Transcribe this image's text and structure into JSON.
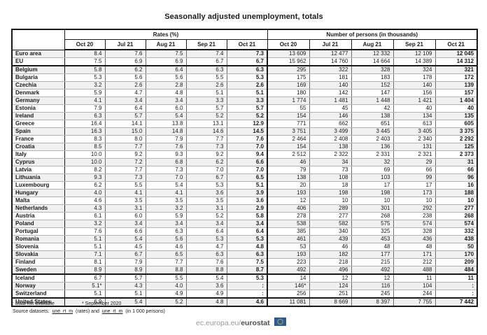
{
  "title": "Seasonally adjusted unemployment, totals",
  "table": {
    "groups": [
      {
        "label": "Rates (%)"
      },
      {
        "label": "Number of persons (in thousands)"
      }
    ],
    "months": [
      "Oct 20",
      "Jul 21",
      "Aug 21",
      "Sep 21",
      "Oct 21"
    ],
    "rows": [
      {
        "name": "Euro area",
        "rates": [
          "8.4",
          "7.6",
          "7.5",
          "7.4",
          "7.3"
        ],
        "persons": [
          "13 609",
          "12 477",
          "12 332",
          "12 109",
          "12 045"
        ],
        "separator_after": false
      },
      {
        "name": "EU",
        "rates": [
          "7.5",
          "6.9",
          "6.9",
          "6.7",
          "6.7"
        ],
        "persons": [
          "15 962",
          "14 760",
          "14 664",
          "14 389",
          "14 312"
        ],
        "separator_after": true
      },
      {
        "name": "Belgium",
        "rates": [
          "5.8",
          "6.2",
          "6.4",
          "6.3",
          "6.3"
        ],
        "persons": [
          "295",
          "322",
          "328",
          "324",
          "321"
        ],
        "separator_after": false
      },
      {
        "name": "Bulgaria",
        "rates": [
          "5.3",
          "5.6",
          "5.6",
          "5.5",
          "5.3"
        ],
        "persons": [
          "175",
          "181",
          "183",
          "178",
          "172"
        ],
        "separator_after": false
      },
      {
        "name": "Czechia",
        "rates": [
          "3.2",
          "2.6",
          "2.8",
          "2.6",
          "2.6"
        ],
        "persons": [
          "169",
          "140",
          "152",
          "140",
          "139"
        ],
        "separator_after": false
      },
      {
        "name": "Denmark",
        "rates": [
          "5.9",
          "4.7",
          "4.8",
          "5.1",
          "5.1"
        ],
        "persons": [
          "180",
          "142",
          "147",
          "156",
          "157"
        ],
        "separator_after": false
      },
      {
        "name": "Germany",
        "rates": [
          "4.1",
          "3.4",
          "3.4",
          "3.3",
          "3.3"
        ],
        "persons": [
          "1 774",
          "1 481",
          "1 448",
          "1 421",
          "1 404"
        ],
        "separator_after": false
      },
      {
        "name": "Estonia",
        "rates": [
          "7.9",
          "6.4",
          "6.0",
          "5.7",
          "5.7"
        ],
        "persons": [
          "55",
          "45",
          "42",
          "40",
          "40"
        ],
        "separator_after": false
      },
      {
        "name": "Ireland",
        "rates": [
          "6.3",
          "5.7",
          "5.4",
          "5.2",
          "5.2"
        ],
        "persons": [
          "154",
          "146",
          "138",
          "134",
          "135"
        ],
        "separator_after": false
      },
      {
        "name": "Greece",
        "rates": [
          "16.4",
          "14.1",
          "13.8",
          "13.1",
          "12.9"
        ],
        "persons": [
          "771",
          "662",
          "651",
          "613",
          "605"
        ],
        "separator_after": false
      },
      {
        "name": "Spain",
        "rates": [
          "16.3",
          "15.0",
          "14.8",
          "14.6",
          "14.5"
        ],
        "persons": [
          "3 751",
          "3 499",
          "3 445",
          "3 405",
          "3 375"
        ],
        "separator_after": false
      },
      {
        "name": "France",
        "rates": [
          "8.3",
          "8.0",
          "7.9",
          "7.7",
          "7.6"
        ],
        "persons": [
          "2 464",
          "2 408",
          "2 403",
          "2 340",
          "2 292"
        ],
        "separator_after": false
      },
      {
        "name": "Croatia",
        "rates": [
          "8.5",
          "7.7",
          "7.6",
          "7.3",
          "7.0"
        ],
        "persons": [
          "154",
          "138",
          "136",
          "131",
          "125"
        ],
        "separator_after": false
      },
      {
        "name": "Italy",
        "rates": [
          "10.0",
          "9.2",
          "9.3",
          "9.2",
          "9.4"
        ],
        "persons": [
          "2 512",
          "2 322",
          "2 331",
          "2 321",
          "2 373"
        ],
        "separator_after": false
      },
      {
        "name": "Cyprus",
        "rates": [
          "10.0",
          "7.2",
          "6.8",
          "6.2",
          "6.6"
        ],
        "persons": [
          "46",
          "34",
          "32",
          "29",
          "31"
        ],
        "separator_after": false
      },
      {
        "name": "Latvia",
        "rates": [
          "8.2",
          "7.7",
          "7.3",
          "7.0",
          "7.0"
        ],
        "persons": [
          "79",
          "73",
          "69",
          "66",
          "66"
        ],
        "separator_after": false
      },
      {
        "name": "Lithuania",
        "rates": [
          "9.3",
          "7.3",
          "7.0",
          "6.7",
          "6.5"
        ],
        "persons": [
          "138",
          "108",
          "103",
          "99",
          "96"
        ],
        "separator_after": false
      },
      {
        "name": "Luxembourg",
        "rates": [
          "6.2",
          "5.5",
          "5.4",
          "5.3",
          "5.1"
        ],
        "persons": [
          "20",
          "18",
          "17",
          "17",
          "16"
        ],
        "separator_after": false
      },
      {
        "name": "Hungary",
        "rates": [
          "4.0",
          "4.1",
          "4.1",
          "3.6",
          "3.9"
        ],
        "persons": [
          "193",
          "198",
          "198",
          "173",
          "188"
        ],
        "separator_after": false
      },
      {
        "name": "Malta",
        "rates": [
          "4.6",
          "3.5",
          "3.5",
          "3.5",
          "3.6"
        ],
        "persons": [
          "12",
          "10",
          "10",
          "10",
          "10"
        ],
        "separator_after": false
      },
      {
        "name": "Netherlands",
        "rates": [
          "4.3",
          "3.1",
          "3.2",
          "3.1",
          "2.9"
        ],
        "persons": [
          "406",
          "289",
          "301",
          "292",
          "277"
        ],
        "separator_after": false
      },
      {
        "name": "Austria",
        "rates": [
          "6.1",
          "6.0",
          "5.9",
          "5.2",
          "5.8"
        ],
        "persons": [
          "278",
          "277",
          "268",
          "238",
          "268"
        ],
        "separator_after": false
      },
      {
        "name": "Poland",
        "rates": [
          "3.2",
          "3.4",
          "3.4",
          "3.4",
          "3.4"
        ],
        "persons": [
          "538",
          "582",
          "575",
          "574",
          "574"
        ],
        "separator_after": false
      },
      {
        "name": "Portugal",
        "rates": [
          "7.6",
          "6.6",
          "6.3",
          "6.4",
          "6.4"
        ],
        "persons": [
          "385",
          "340",
          "325",
          "328",
          "332"
        ],
        "separator_after": false
      },
      {
        "name": "Romania",
        "rates": [
          "5.1",
          "5.4",
          "5.6",
          "5.3",
          "5.3"
        ],
        "persons": [
          "461",
          "439",
          "453",
          "436",
          "438"
        ],
        "separator_after": false
      },
      {
        "name": "Slovenia",
        "rates": [
          "5.1",
          "4.5",
          "4.6",
          "4.7",
          "4.8"
        ],
        "persons": [
          "53",
          "46",
          "48",
          "48",
          "50"
        ],
        "separator_after": false
      },
      {
        "name": "Slovakia",
        "rates": [
          "7.1",
          "6.7",
          "6.5",
          "6.3",
          "6.3"
        ],
        "persons": [
          "193",
          "182",
          "177",
          "171",
          "170"
        ],
        "separator_after": false
      },
      {
        "name": "Finland",
        "rates": [
          "8.1",
          "7.9",
          "7.7",
          "7.6",
          "7.5"
        ],
        "persons": [
          "223",
          "218",
          "215",
          "212",
          "209"
        ],
        "separator_after": false
      },
      {
        "name": "Sweden",
        "rates": [
          "8.9",
          "8.9",
          "8.8",
          "8.8",
          "8.7"
        ],
        "persons": [
          "492",
          "496",
          "492",
          "488",
          "484"
        ],
        "separator_after": true
      },
      {
        "name": "Iceland",
        "rates": [
          "6.7",
          "5.7",
          "5.5",
          "5.4",
          "5.3"
        ],
        "persons": [
          "14",
          "12",
          "12",
          "11",
          "11"
        ],
        "separator_after": false
      },
      {
        "name": "Norway",
        "rates": [
          "5.1*",
          "4.3",
          "4.0",
          "3.6",
          ":"
        ],
        "persons": [
          "146*",
          "124",
          "116",
          "104",
          ":"
        ],
        "separator_after": false
      },
      {
        "name": "Switzerland",
        "rates": [
          "5.1",
          "5.1",
          "4.9",
          "4.9",
          ":"
        ],
        "persons": [
          "256",
          "251",
          "245",
          "244",
          ":"
        ],
        "separator_after": true
      },
      {
        "name": "United States",
        "rates": [
          "6.9",
          "5.4",
          "5.2",
          "4.8",
          "4.6"
        ],
        "persons": [
          "11 081",
          "8 669",
          "8 397",
          "7 755",
          "7 442"
        ],
        "separator_after": false
      }
    ]
  },
  "footnotes": {
    "not_available": ": Data not available",
    "september": "* September 2020",
    "source_label": "Source datasets:",
    "link_rates": "une_rt_m",
    "between": "(rates) and",
    "link_persons": "une_rt_m",
    "after": "(in 1 000 persons)"
  },
  "footer": {
    "url": "ec.europa.eu/",
    "brand": "eurostat",
    "flag_blue": "#2a5a9e",
    "flag_star": "#ffcc00"
  }
}
